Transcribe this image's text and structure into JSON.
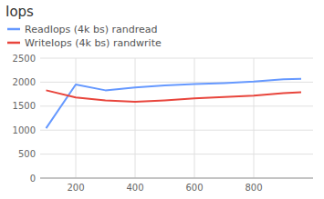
{
  "chart_data": {
    "type": "line",
    "title": "Iops",
    "x": [
      100,
      200,
      300,
      400,
      500,
      600,
      700,
      800,
      900,
      960
    ],
    "series": [
      {
        "name": "ReadIops (4k bs) randread",
        "color": "#6699ff",
        "values": [
          1040,
          1950,
          1830,
          1890,
          1930,
          1960,
          1980,
          2010,
          2060,
          2070
        ]
      },
      {
        "name": "WriteIops (4k bs) randwrite",
        "color": "#e8453c",
        "values": [
          1830,
          1680,
          1620,
          1590,
          1620,
          1660,
          1690,
          1720,
          1770,
          1790
        ]
      }
    ],
    "xlim": [
      80,
      1000
    ],
    "xticks": [
      200,
      400,
      600,
      800
    ],
    "ylim": [
      0,
      2500
    ],
    "yticks": [
      0,
      500,
      1000,
      1500,
      2000,
      2500
    ],
    "grid": true,
    "legend": "upper left"
  }
}
